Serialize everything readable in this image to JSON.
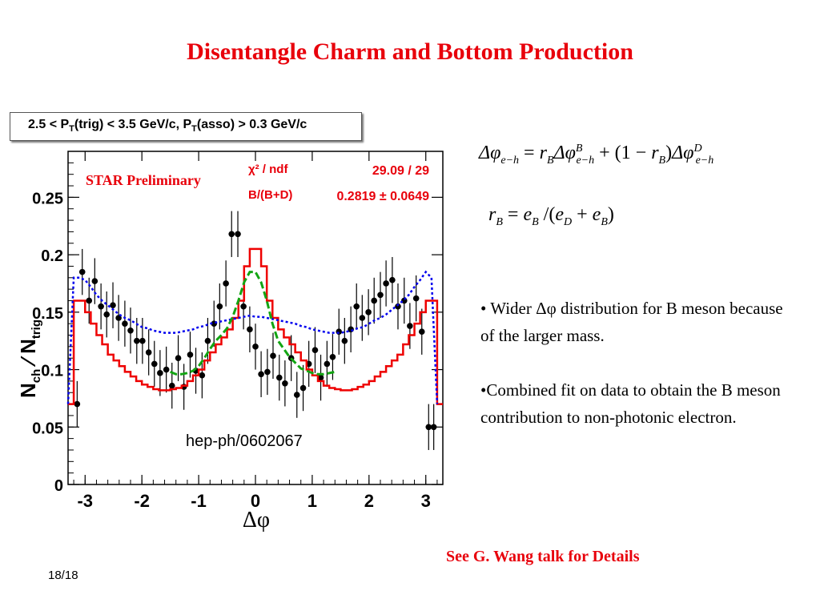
{
  "slide": {
    "title": "Disentangle Charm and Bottom Production",
    "caption": "2.5 < P_T(trig) < 3.5 GeV/c, P_T(asso) > 0.3 GeV/c",
    "caption_parts": {
      "a": "2.5 < P",
      "b": "(trig) < 3.5 GeV/c, P",
      "c": "(asso) > 0.3 GeV/c",
      "sub": "T"
    },
    "bullets": [
      "• Wider Δφ distribution for B meson because of the larger mass.",
      "•Combined fit on data to obtain the B meson contribution to non-photonic electron."
    ],
    "see_link": "See G. Wang talk for Details",
    "slide_number": "18/18",
    "colors": {
      "accent": "#e8000b"
    }
  },
  "equations": {
    "eq1": {
      "lhs_sym": "Δφ",
      "lhs_sub": "e−h",
      "eq": "=",
      "rB": "r",
      "rB_sub": "B",
      "dphi": "Δφ",
      "B_sup": "B",
      "sub": "e−h",
      "plus": "+",
      "paren_open": "(1 −",
      "paren_close": ")",
      "D_sup": "D"
    },
    "eq2": {
      "r": "r",
      "r_sub": "B",
      "eq": "=",
      "e": "e",
      "e_sub": "B",
      "slash": "/(",
      "eD_sub": "D",
      "plus": "+",
      "close": ")"
    }
  },
  "chart_data": {
    "type": "line",
    "title": "",
    "xlabel": "Δφ",
    "ylabel": "N_ch / N_trig",
    "xlim": [
      -3.3,
      3.3
    ],
    "ylim": [
      0,
      0.29
    ],
    "xticks": [
      -3,
      -2,
      -1,
      0,
      1,
      2,
      3
    ],
    "yticks": [
      0,
      0.05,
      0.1,
      0.15,
      0.2,
      0.25
    ],
    "ytick_labels": [
      "0",
      "0.05",
      "0.1",
      "0.15",
      "0.2",
      "0.25"
    ],
    "annotations": {
      "star": "STAR Preliminary",
      "chi_label": "χ² / ndf",
      "chi_value": "29.09 / 29",
      "frac_label": "B/(B+D)",
      "frac_value": "0.2819 ± 0.0649",
      "ref": "hep-ph/0602067"
    },
    "series": [
      {
        "name": "data",
        "style": "points",
        "color": "#000000",
        "x": [
          -3.14,
          -3.05,
          -2.93,
          -2.83,
          -2.72,
          -2.62,
          -2.51,
          -2.41,
          -2.3,
          -2.2,
          -2.09,
          -1.99,
          -1.88,
          -1.78,
          -1.68,
          -1.57,
          -1.47,
          -1.36,
          -1.26,
          -1.15,
          -1.05,
          -0.94,
          -0.84,
          -0.73,
          -0.63,
          -0.52,
          -0.42,
          -0.31,
          -0.21,
          -0.1,
          0.0,
          0.1,
          0.21,
          0.31,
          0.42,
          0.52,
          0.63,
          0.73,
          0.84,
          0.94,
          1.05,
          1.15,
          1.26,
          1.36,
          1.47,
          1.57,
          1.68,
          1.78,
          1.88,
          1.99,
          2.09,
          2.2,
          2.3,
          2.41,
          2.51,
          2.62,
          2.72,
          2.83,
          2.93,
          3.05,
          3.14
        ],
        "y": [
          0.07,
          0.185,
          0.16,
          0.177,
          0.155,
          0.148,
          0.156,
          0.145,
          0.14,
          0.134,
          0.125,
          0.125,
          0.115,
          0.105,
          0.097,
          0.1,
          0.086,
          0.11,
          0.085,
          0.113,
          0.099,
          0.095,
          0.125,
          0.14,
          0.155,
          0.175,
          0.218,
          0.218,
          0.155,
          0.135,
          0.12,
          0.096,
          0.098,
          0.112,
          0.093,
          0.088,
          0.11,
          0.078,
          0.084,
          0.105,
          0.117,
          0.093,
          0.105,
          0.111,
          0.133,
          0.125,
          0.135,
          0.155,
          0.145,
          0.15,
          0.16,
          0.165,
          0.175,
          0.178,
          0.155,
          0.16,
          0.138,
          0.162,
          0.133,
          0.05,
          0.05
        ],
        "err": 0.02
      },
      {
        "name": "fit (red)",
        "style": "step",
        "color": "#ee0000",
        "x": [
          -3.3,
          -3.2,
          -3.1,
          -3.0,
          -2.9,
          -2.8,
          -2.7,
          -2.6,
          -2.5,
          -2.4,
          -2.3,
          -2.2,
          -2.1,
          -2.0,
          -1.9,
          -1.8,
          -1.7,
          -1.6,
          -1.5,
          -1.4,
          -1.3,
          -1.2,
          -1.1,
          -1.0,
          -0.9,
          -0.8,
          -0.7,
          -0.6,
          -0.5,
          -0.4,
          -0.3,
          -0.2,
          -0.1,
          0.0,
          0.1,
          0.2,
          0.3,
          0.4,
          0.5,
          0.6,
          0.7,
          0.8,
          0.9,
          1.0,
          1.1,
          1.2,
          1.3,
          1.4,
          1.5,
          1.6,
          1.7,
          1.8,
          1.9,
          2.0,
          2.1,
          2.2,
          2.3,
          2.4,
          2.5,
          2.6,
          2.7,
          2.8,
          2.9,
          3.0,
          3.1,
          3.2
        ],
        "y": [
          0.07,
          0.16,
          0.16,
          0.15,
          0.14,
          0.13,
          0.122,
          0.113,
          0.108,
          0.103,
          0.098,
          0.094,
          0.09,
          0.087,
          0.085,
          0.083,
          0.082,
          0.082,
          0.083,
          0.084,
          0.086,
          0.09,
          0.095,
          0.1,
          0.108,
          0.115,
          0.122,
          0.128,
          0.135,
          0.145,
          0.16,
          0.19,
          0.205,
          0.205,
          0.19,
          0.16,
          0.145,
          0.135,
          0.128,
          0.122,
          0.115,
          0.108,
          0.1,
          0.095,
          0.09,
          0.086,
          0.084,
          0.083,
          0.082,
          0.082,
          0.083,
          0.085,
          0.087,
          0.09,
          0.094,
          0.098,
          0.103,
          0.108,
          0.113,
          0.122,
          0.13,
          0.14,
          0.15,
          0.16,
          0.16,
          0.07
        ]
      },
      {
        "name": "B component (blue)",
        "style": "dotted",
        "color": "#0000ee",
        "x": [
          -3.3,
          -3.2,
          -3.1,
          -3.0,
          -2.9,
          -2.8,
          -2.7,
          -2.6,
          -2.5,
          -2.4,
          -2.3,
          -2.2,
          -2.1,
          -2.0,
          -1.9,
          -1.8,
          -1.7,
          -1.6,
          -1.5,
          -1.4,
          -1.3,
          -1.2,
          -1.1,
          -1.0,
          -0.9,
          -0.8,
          -0.7,
          -0.6,
          -0.5,
          -0.4,
          -0.3,
          -0.2,
          -0.1,
          0.0,
          0.1,
          0.2,
          0.3,
          0.4,
          0.5,
          0.6,
          0.7,
          0.8,
          0.9,
          1.0,
          1.1,
          1.2,
          1.3,
          1.4,
          1.5,
          1.6,
          1.7,
          1.8,
          1.9,
          2.0,
          2.1,
          2.2,
          2.3,
          2.4,
          2.5,
          2.6,
          2.7,
          2.8,
          2.9,
          3.0,
          3.1,
          3.2
        ],
        "y": [
          0.07,
          0.18,
          0.18,
          0.178,
          0.172,
          0.165,
          0.16,
          0.156,
          0.152,
          0.148,
          0.145,
          0.143,
          0.14,
          0.137,
          0.136,
          0.134,
          0.133,
          0.132,
          0.132,
          0.132,
          0.133,
          0.134,
          0.135,
          0.137,
          0.138,
          0.14,
          0.141,
          0.142,
          0.143,
          0.144,
          0.145,
          0.146,
          0.147,
          0.146,
          0.146,
          0.145,
          0.144,
          0.143,
          0.142,
          0.141,
          0.14,
          0.138,
          0.137,
          0.135,
          0.134,
          0.133,
          0.132,
          0.132,
          0.132,
          0.133,
          0.134,
          0.136,
          0.137,
          0.14,
          0.143,
          0.145,
          0.148,
          0.152,
          0.156,
          0.16,
          0.165,
          0.172,
          0.178,
          0.185,
          0.18,
          0.07
        ]
      },
      {
        "name": "D component (green)",
        "style": "dashed",
        "color": "#13a513",
        "x": [
          -1.5,
          -1.4,
          -1.3,
          -1.2,
          -1.1,
          -1.0,
          -0.9,
          -0.8,
          -0.7,
          -0.6,
          -0.5,
          -0.4,
          -0.3,
          -0.2,
          -0.1,
          0.0,
          0.1,
          0.2,
          0.3,
          0.4,
          0.5,
          0.6,
          0.7,
          0.8,
          0.9,
          1.0,
          1.1,
          1.2,
          1.3,
          1.4
        ],
        "y": [
          0.098,
          0.096,
          0.096,
          0.097,
          0.099,
          0.103,
          0.11,
          0.118,
          0.125,
          0.13,
          0.136,
          0.146,
          0.16,
          0.176,
          0.185,
          0.185,
          0.176,
          0.16,
          0.14,
          0.125,
          0.118,
          0.111,
          0.106,
          0.101,
          0.099,
          0.097,
          0.096,
          0.096,
          0.097,
          0.098
        ]
      }
    ]
  }
}
